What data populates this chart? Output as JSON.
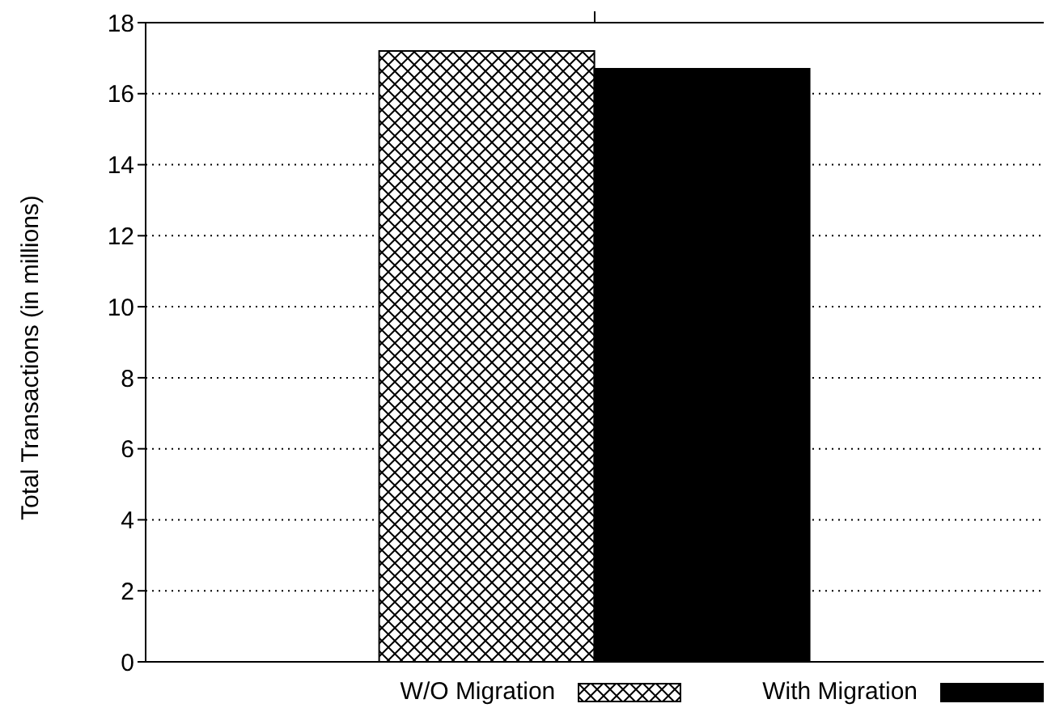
{
  "chart_data": {
    "type": "bar",
    "ylabel": "Total Transactions (in millions)",
    "categories": [
      null
    ],
    "series": [
      {
        "name": "W/O Migration",
        "color": "#000000",
        "values": [
          17.2
        ]
      },
      {
        "name": "With Migration",
        "color": "#000000",
        "values": [
          16.7
        ]
      }
    ],
    "ylim": [
      0,
      18
    ],
    "yticks": [
      0,
      2,
      4,
      6,
      8,
      10,
      12,
      14,
      16,
      18
    ],
    "grid": "y",
    "legend": "bottom"
  }
}
